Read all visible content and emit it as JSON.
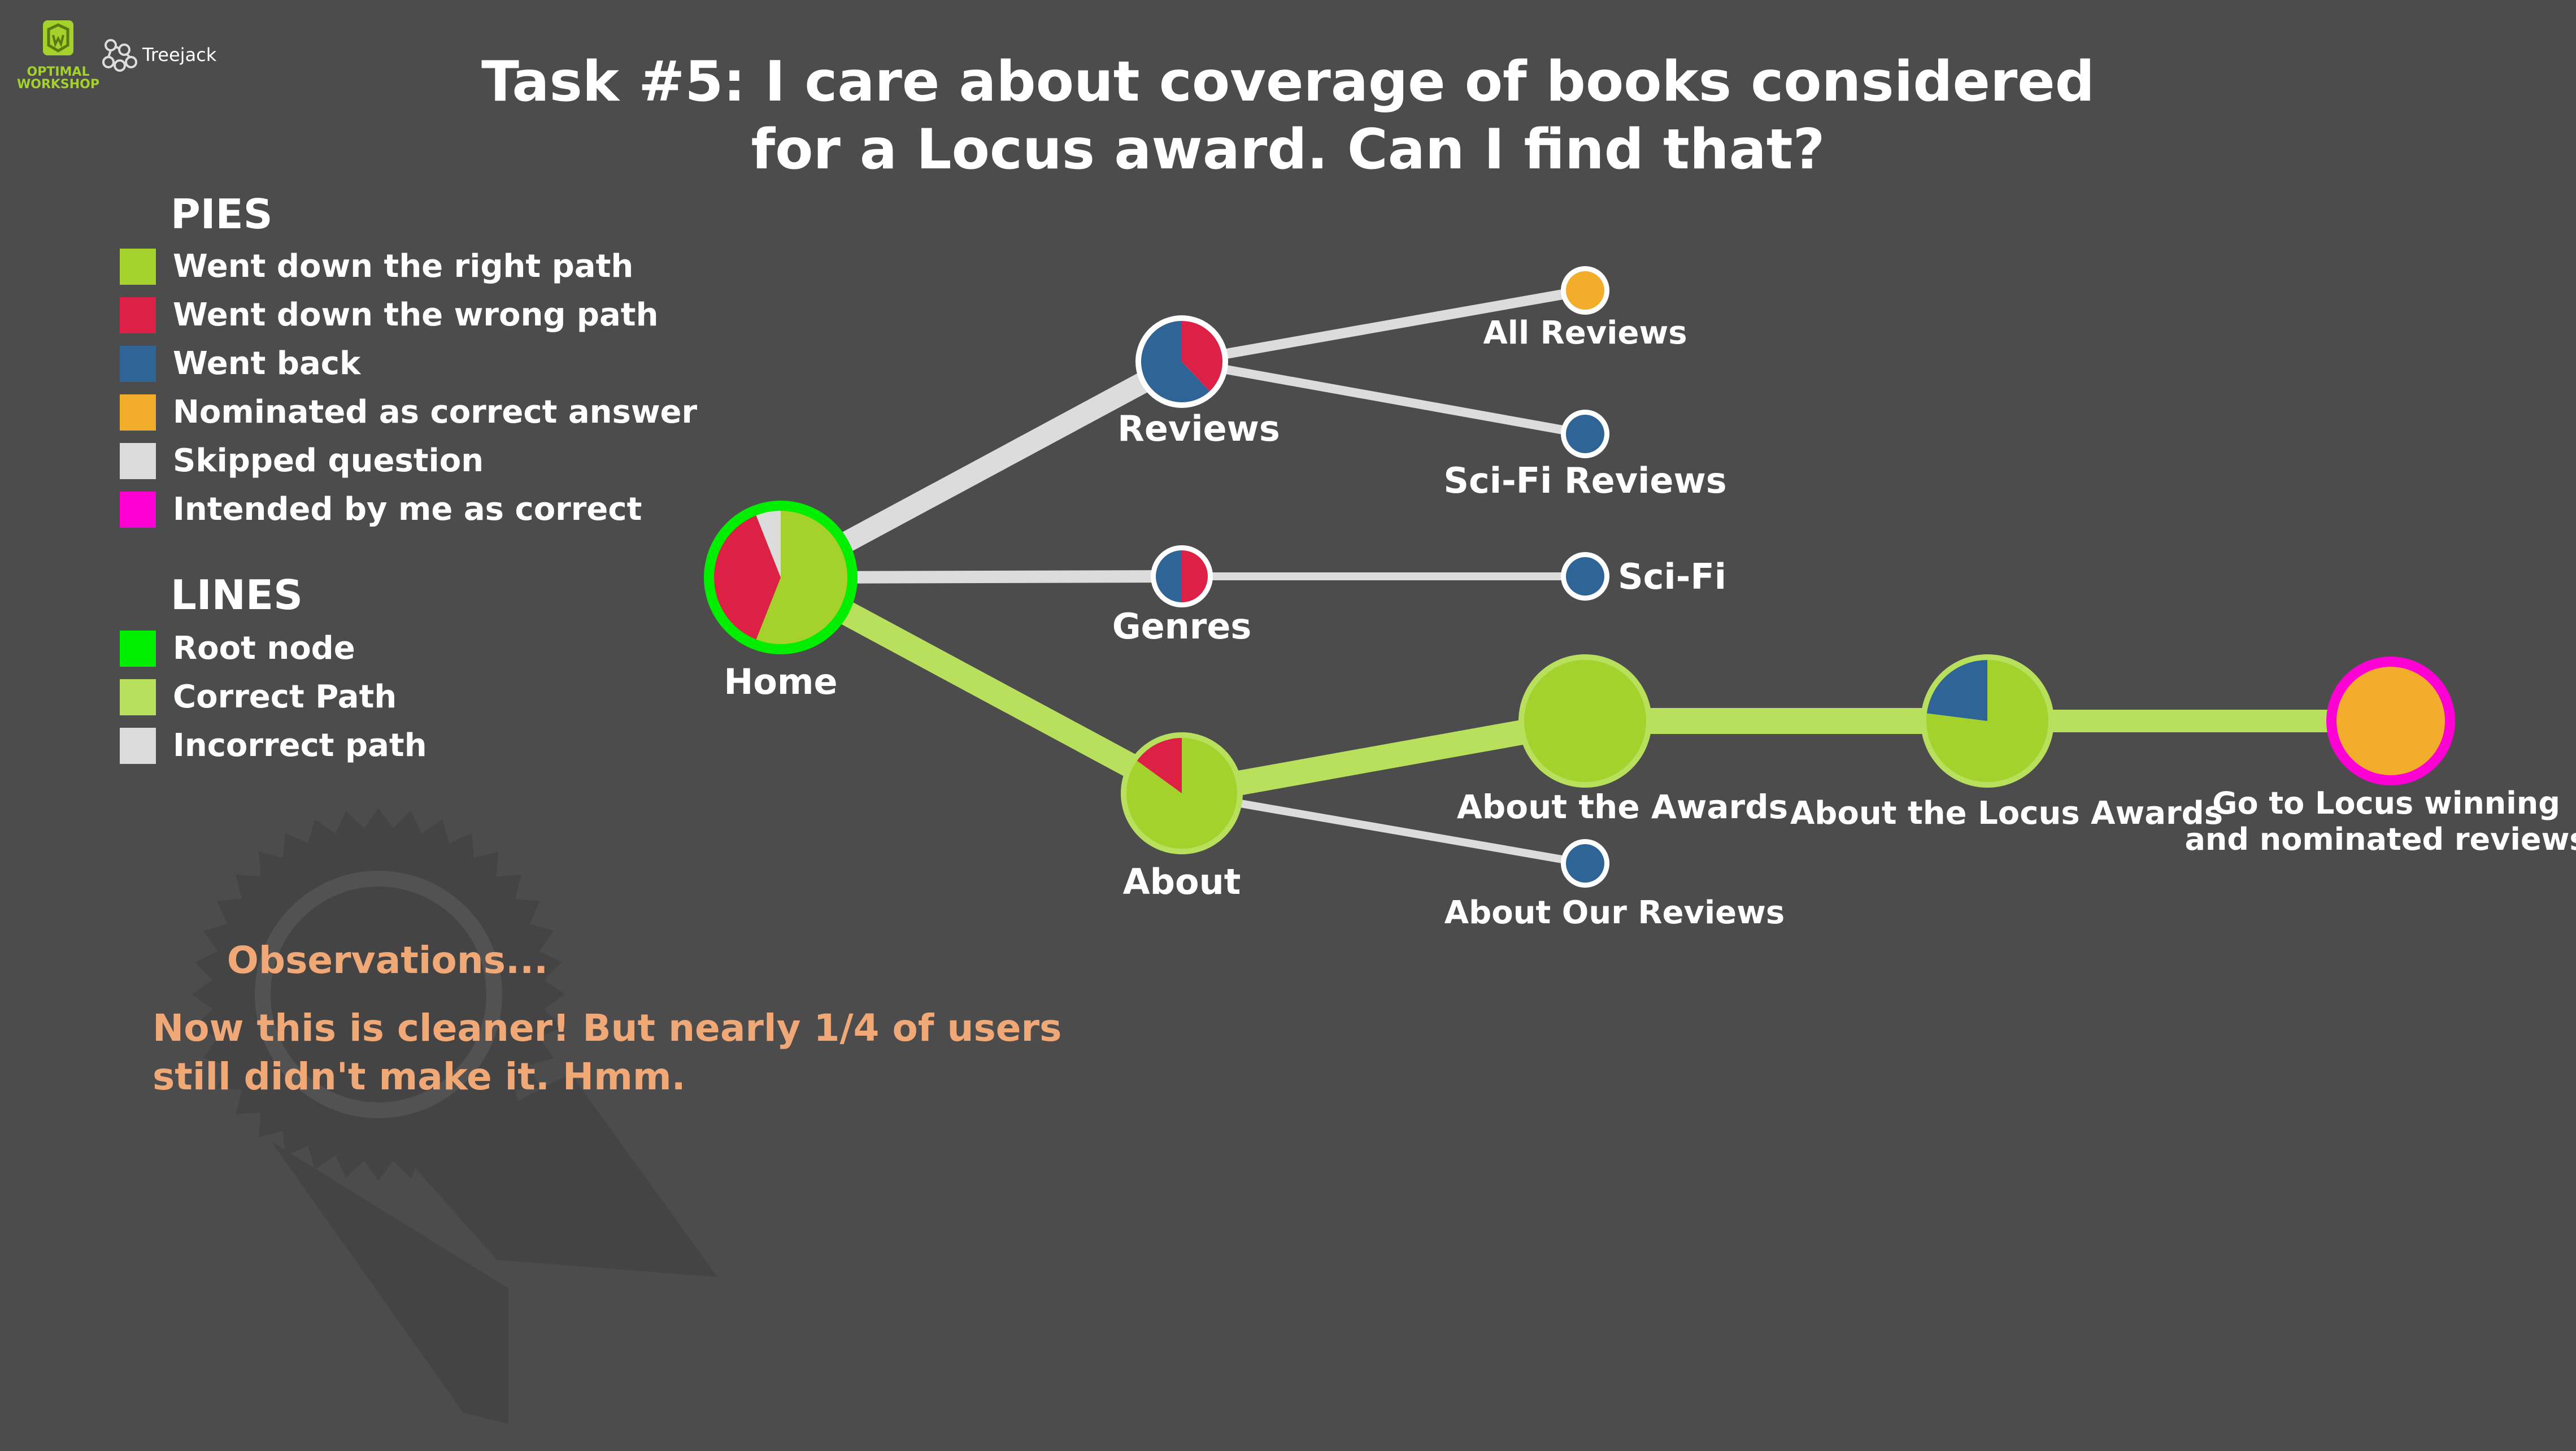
{
  "header": {
    "brand_line1": "OPTIMAL",
    "brand_line2": "WORKSHOP",
    "product": "Treejack",
    "title_line1": "Task #5: I care about coverage of books considered",
    "title_line2": "for a Locus award. Can I find that?"
  },
  "legend": {
    "pies_title": "PIES",
    "pies": [
      {
        "label": "Went down the right path",
        "color": "#a4d12c"
      },
      {
        "label": "Went down the wrong path",
        "color": "#dc2046"
      },
      {
        "label": "Went back",
        "color": "#2f6497"
      },
      {
        "label": "Nominated as correct answer",
        "color": "#f2ad2a"
      },
      {
        "label": "Skipped question",
        "color": "#dcdcdc"
      },
      {
        "label": "Intended by me as correct",
        "color": "#ff00d4"
      }
    ],
    "lines_title": "LINES",
    "lines": [
      {
        "label": "Root node",
        "color": "#00ee00"
      },
      {
        "label": "Correct Path",
        "color": "#b8e05c"
      },
      {
        "label": "Incorrect path",
        "color": "#dcdcdc"
      }
    ]
  },
  "observations": {
    "title": "Observations...",
    "line1": "Now this is cleaner! But nearly 1/4 of users",
    "line2": "still didn't make it. Hmm.",
    "color": "#f0a877"
  },
  "tree": {
    "nodes": [
      {
        "id": "home",
        "label": "Home",
        "ring": "root",
        "pie": [
          {
            "cat": "right",
            "frac": 0.56
          },
          {
            "cat": "wrong",
            "frac": 0.38
          },
          {
            "cat": "skipped",
            "frac": 0.06
          }
        ]
      },
      {
        "id": "reviews",
        "label": "Reviews",
        "ring": "none",
        "pie": [
          {
            "cat": "wrong",
            "frac": 0.38
          },
          {
            "cat": "back",
            "frac": 0.62
          }
        ]
      },
      {
        "id": "genres",
        "label": "Genres",
        "ring": "none",
        "pie": [
          {
            "cat": "wrong",
            "frac": 0.5
          },
          {
            "cat": "back",
            "frac": 0.5
          }
        ]
      },
      {
        "id": "about",
        "label": "About",
        "ring": "correct",
        "pie": [
          {
            "cat": "right",
            "frac": 0.85
          },
          {
            "cat": "wrong",
            "frac": 0.15
          }
        ]
      },
      {
        "id": "all_reviews",
        "label": "All Reviews",
        "ring": "none",
        "pie": [
          {
            "cat": "nominated",
            "frac": 1.0
          }
        ]
      },
      {
        "id": "scifi_reviews",
        "label": "Sci-Fi Reviews",
        "ring": "none",
        "pie": [
          {
            "cat": "back",
            "frac": 1.0
          }
        ]
      },
      {
        "id": "scifi",
        "label": "Sci-Fi",
        "ring": "none",
        "pie": [
          {
            "cat": "back",
            "frac": 1.0
          }
        ]
      },
      {
        "id": "about_awards",
        "label": "About the Awards",
        "ring": "correct",
        "pie": [
          {
            "cat": "right",
            "frac": 1.0
          }
        ]
      },
      {
        "id": "about_reviews",
        "label": "About Our Reviews",
        "ring": "none",
        "pie": [
          {
            "cat": "back",
            "frac": 1.0
          }
        ]
      },
      {
        "id": "about_locus",
        "label": "About the Locus Awards",
        "ring": "correct",
        "pie": [
          {
            "cat": "right",
            "frac": 0.77
          },
          {
            "cat": "back",
            "frac": 0.23
          }
        ]
      },
      {
        "id": "goto_locus",
        "label_line1": "Go to Locus winning",
        "label_line2": "and nominated reviews",
        "ring": "intended",
        "pie": [
          {
            "cat": "nominated",
            "frac": 1.0
          }
        ]
      }
    ],
    "edges": [
      {
        "from": "home",
        "to": "reviews",
        "type": "incorrect"
      },
      {
        "from": "home",
        "to": "genres",
        "type": "incorrect"
      },
      {
        "from": "home",
        "to": "about",
        "type": "correct"
      },
      {
        "from": "reviews",
        "to": "all_reviews",
        "type": "incorrect"
      },
      {
        "from": "reviews",
        "to": "scifi_reviews",
        "type": "incorrect"
      },
      {
        "from": "genres",
        "to": "scifi",
        "type": "incorrect"
      },
      {
        "from": "about",
        "to": "about_awards",
        "type": "correct"
      },
      {
        "from": "about",
        "to": "about_reviews",
        "type": "incorrect"
      },
      {
        "from": "about_awards",
        "to": "about_locus",
        "type": "correct"
      },
      {
        "from": "about_locus",
        "to": "goto_locus",
        "type": "correct"
      }
    ]
  }
}
